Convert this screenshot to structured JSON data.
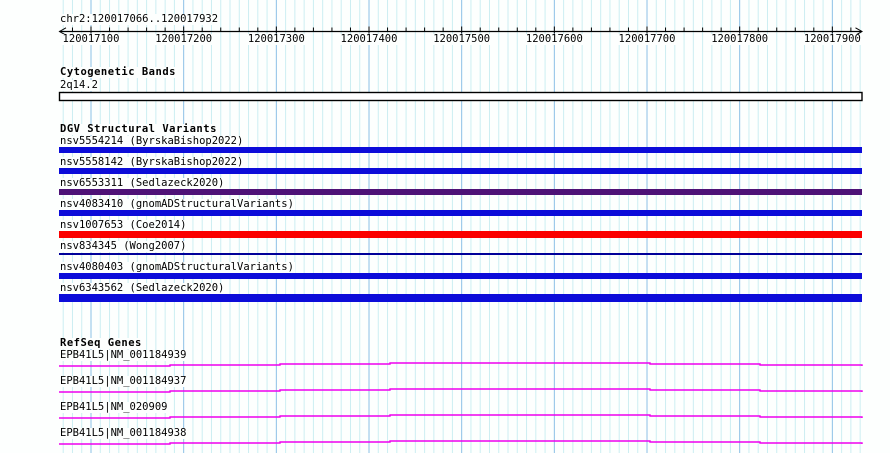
{
  "header": {
    "region_label": "chr2:120017066..120017932"
  },
  "ruler": {
    "start": 120017066,
    "end": 120017932,
    "tick_labels": [
      "120017100",
      "120017200",
      "120017300",
      "120017400",
      "120017500",
      "120017600",
      "120017700",
      "120017800",
      "120017900"
    ],
    "minor_tick_bp": 20,
    "major_tick_bp": 100,
    "grid_bp": 10
  },
  "colors": {
    "grid_light": "#cceef2",
    "grid_major": "#8cc0e6",
    "ruler": "#000000",
    "band_fill": "#ffffff",
    "band_border": "#000000",
    "blue": "#0c0cd9",
    "purple": "#4e1277",
    "red": "#fb0000",
    "navy_thin": "#00009a",
    "gene": "#ee00ee"
  },
  "sections": {
    "cytogenetic": {
      "title": "Cytogenetic Bands",
      "band_name": "2q14.2"
    },
    "dgv": {
      "title": "DGV Structural Variants",
      "variants": [
        {
          "label": "nsv5554214 (ByrskaBishop2022)",
          "color_key": "blue",
          "thickness": 6
        },
        {
          "label": "nsv5558142 (ByrskaBishop2022)",
          "color_key": "blue",
          "thickness": 6
        },
        {
          "label": "nsv6553311 (Sedlazeck2020)",
          "color_key": "purple",
          "thickness": 6
        },
        {
          "label": "nsv4083410 (gnomADStructuralVariants)",
          "color_key": "blue",
          "thickness": 6
        },
        {
          "label": "nsv1007653 (Coe2014)",
          "color_key": "red",
          "thickness": 7
        },
        {
          "label": "nsv834345 (Wong2007)",
          "color_key": "navy_thin",
          "thickness": 2
        },
        {
          "label": "nsv4080403 (gnomADStructuralVariants)",
          "color_key": "blue",
          "thickness": 6
        },
        {
          "label": "nsv6343562 (Sedlazeck2020)",
          "color_key": "blue",
          "thickness": 8
        }
      ]
    },
    "refseq": {
      "title": "RefSeq Genes",
      "genes": [
        {
          "label": "EPB41L5|NM_001184939"
        },
        {
          "label": "EPB41L5|NM_001184937"
        },
        {
          "label": "EPB41L5|NM_020909"
        },
        {
          "label": "EPB41L5|NM_001184938"
        }
      ]
    }
  }
}
